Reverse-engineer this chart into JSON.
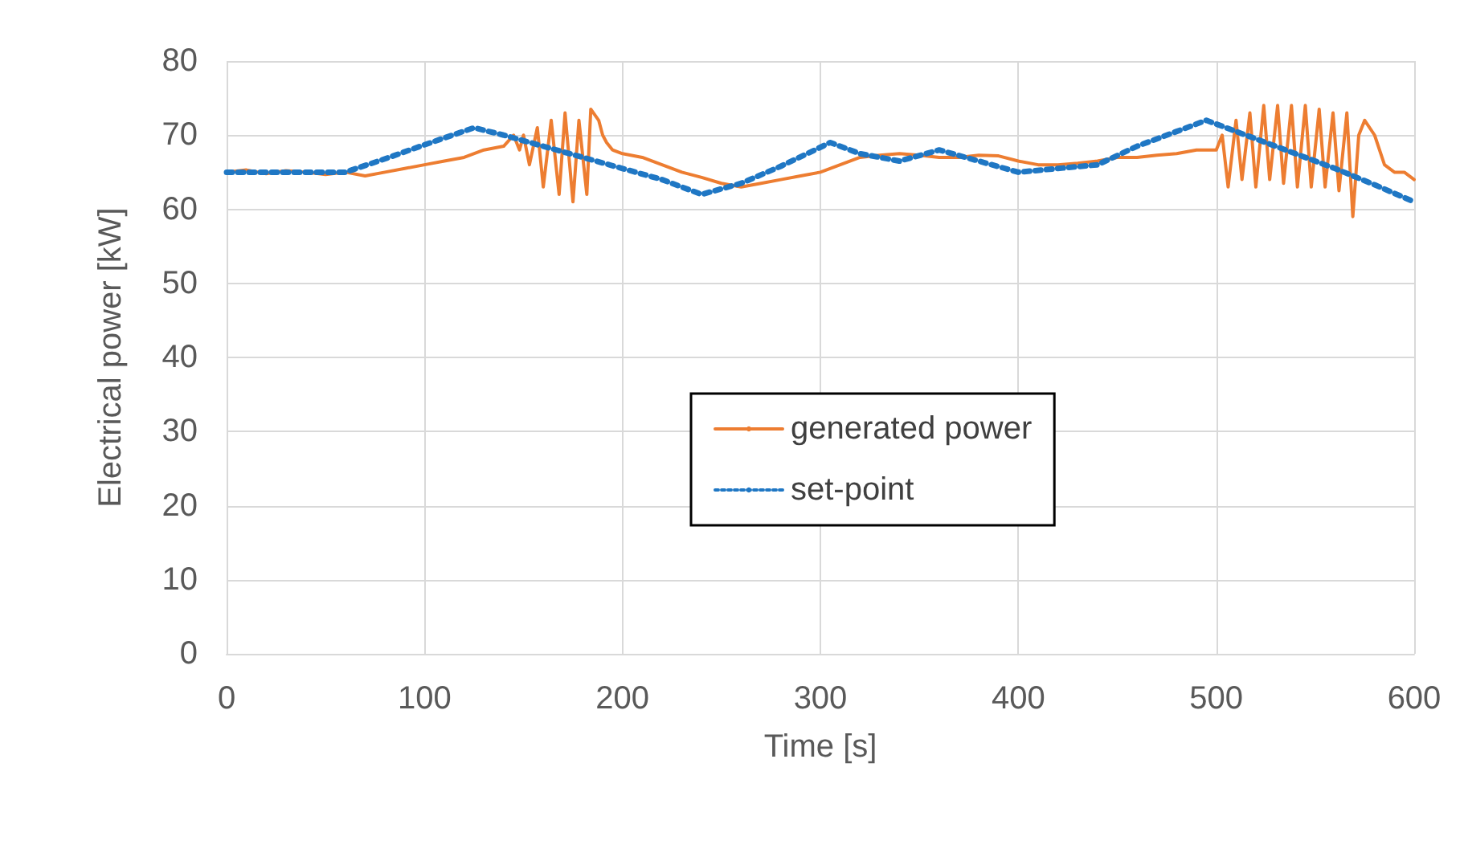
{
  "chart_data": {
    "type": "line",
    "xlabel": "Time [s]",
    "ylabel": "Electrical power [kW]",
    "xlim": [
      0,
      600
    ],
    "xticks": [
      0,
      100,
      200,
      300,
      400,
      500,
      600
    ],
    "ylim": [
      0,
      80
    ],
    "yticks": [
      0,
      10,
      20,
      30,
      40,
      50,
      60,
      70,
      80
    ],
    "grid": true,
    "legend": "right",
    "series": [
      {
        "name": "generated power",
        "color": "#ed7d31",
        "line_style": "solid",
        "x": [
          0,
          10,
          20,
          30,
          40,
          50,
          60,
          70,
          80,
          90,
          100,
          110,
          120,
          130,
          140,
          145,
          148,
          150,
          153,
          157,
          160,
          164,
          168,
          171,
          175,
          178,
          182,
          184,
          188,
          190,
          192,
          195,
          200,
          210,
          220,
          230,
          240,
          250,
          260,
          270,
          280,
          290,
          300,
          310,
          320,
          330,
          340,
          350,
          360,
          370,
          380,
          390,
          400,
          410,
          420,
          430,
          440,
          450,
          460,
          470,
          480,
          490,
          500,
          503,
          506,
          510,
          513,
          517,
          520,
          524,
          527,
          531,
          534,
          538,
          541,
          545,
          548,
          552,
          555,
          559,
          562,
          566,
          569,
          572,
          575,
          580,
          585,
          590,
          595,
          600
        ],
        "values": [
          65,
          65.3,
          64.8,
          65.2,
          65,
          64.7,
          65,
          64.5,
          65,
          65.5,
          66,
          66.5,
          67,
          68,
          68.5,
          70,
          68,
          70,
          66,
          71,
          63,
          72,
          62,
          73,
          61,
          72,
          62,
          73.5,
          72,
          70,
          69,
          68,
          67.5,
          67,
          66,
          65,
          64.3,
          63.5,
          63,
          63.5,
          64,
          64.5,
          65,
          66,
          67,
          67.3,
          67.5,
          67.3,
          67,
          67,
          67.3,
          67.2,
          66.5,
          66,
          66,
          66.2,
          66.5,
          67,
          67,
          67.3,
          67.5,
          68,
          68,
          70,
          63,
          72,
          64,
          73,
          63,
          74,
          64,
          74,
          63.5,
          74,
          63,
          74,
          63,
          73.5,
          63,
          73,
          62.5,
          73,
          59,
          70,
          72,
          70,
          66,
          65,
          65,
          64
        ]
      },
      {
        "name": "set-point",
        "color": "#1f77c4",
        "line_style": "dotted",
        "x": [
          0,
          20,
          40,
          60,
          80,
          100,
          125,
          140,
          160,
          180,
          200,
          220,
          240,
          260,
          280,
          305,
          320,
          340,
          360,
          380,
          400,
          420,
          440,
          460,
          480,
          495,
          520,
          540,
          560,
          580,
          600
        ],
        "values": [
          65,
          65,
          65,
          65,
          66.8,
          68.7,
          71,
          70,
          68.5,
          67,
          65.5,
          64,
          62,
          63.5,
          65.8,
          69,
          67.5,
          66.5,
          68,
          66.5,
          65,
          65.5,
          66,
          68.5,
          70.5,
          72,
          69.5,
          67.5,
          65.5,
          63.3,
          61
        ]
      }
    ]
  }
}
